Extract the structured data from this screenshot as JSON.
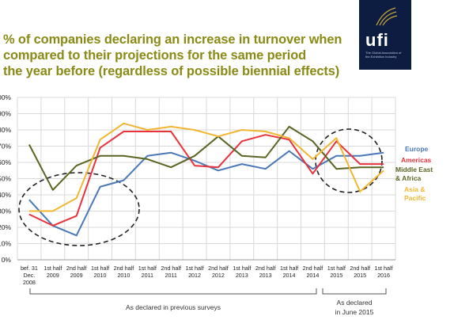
{
  "title_lines": [
    "% of companies declaring an increase in turnover when",
    "compared to their projections for the same period",
    "the year before (regardless of possible biennial effects)"
  ],
  "logo": {
    "text": "ufi",
    "tagline": "The Global Association of the Exhibition Industry"
  },
  "colors": {
    "title": "#8a8a15",
    "Europe": "#4a78b8",
    "Americas": "#e8323c",
    "Middle East & Africa": "#5b6523",
    "Asia & Pacific": "#f2b632"
  },
  "annotations": {
    "previous_surveys": "As declared in previous surveys",
    "june_2015_line1": "As declared",
    "june_2015_line2": "in June 2015"
  },
  "chart_data": {
    "type": "line",
    "title": "% of companies declaring an increase in turnover when compared to their projections for the same period the year before (regardless of possible biennial effects)",
    "categories": [
      [
        "bef. 31",
        "Dec.",
        "2008"
      ],
      [
        "1st half",
        "2009"
      ],
      [
        "2nd half",
        "2009"
      ],
      [
        "1st half",
        "2010"
      ],
      [
        "2nd half",
        "2010"
      ],
      [
        "1st half",
        "2011"
      ],
      [
        "2nd half",
        "2011"
      ],
      [
        "1st half",
        "2012"
      ],
      [
        "2nd half",
        "2012"
      ],
      [
        "1st half",
        "2013"
      ],
      [
        "2nd half",
        "2013"
      ],
      [
        "1st half",
        "2014"
      ],
      [
        "2nd half",
        "2014"
      ],
      [
        "1st half",
        "2015"
      ],
      [
        "2nd half",
        "2015"
      ],
      [
        "1st half",
        "2016"
      ]
    ],
    "yticks": [
      "0%",
      "10%",
      "20%",
      "30%",
      "40%",
      "50%",
      "60%",
      "70%",
      "80%",
      "90%",
      "100%"
    ],
    "ylim": [
      0,
      100
    ],
    "grid": true,
    "legend_position": "right",
    "series": [
      {
        "name": "Europe",
        "values": [
          37,
          21,
          15,
          45,
          49,
          64,
          66,
          61,
          55,
          59,
          56,
          67,
          56,
          64,
          64,
          66
        ]
      },
      {
        "name": "Americas",
        "values": [
          28,
          21,
          27,
          69,
          79,
          79,
          79,
          58,
          57,
          73,
          77,
          74,
          53,
          73,
          59,
          59
        ]
      },
      {
        "name": "Middle East & Africa",
        "values": [
          71,
          43,
          58,
          64,
          64,
          62,
          57,
          64,
          76,
          64,
          63,
          82,
          73,
          56,
          57,
          57
        ]
      },
      {
        "name": "Asia & Pacific",
        "values": [
          30,
          30,
          38,
          74,
          84,
          80,
          82,
          80,
          76,
          80,
          79,
          75,
          62,
          75,
          42,
          55
        ]
      }
    ]
  }
}
